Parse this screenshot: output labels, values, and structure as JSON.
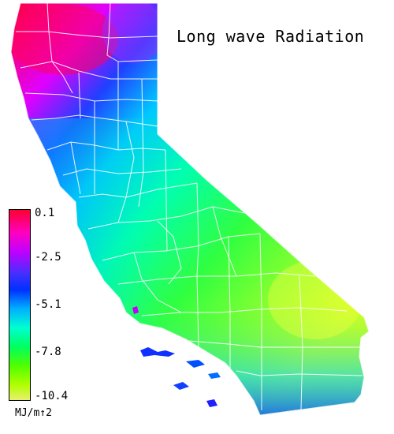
{
  "title": "Long wave Radiation",
  "legend": {
    "ticks": [
      "0.1",
      "-2.5",
      "-5.1",
      "-7.8",
      "-10.4"
    ],
    "unit": "MJ/m↑2",
    "colors": [
      "#ff0030",
      "#ff00ff",
      "#6000ff",
      "#0030ff",
      "#00c8ff",
      "#00ffb0",
      "#10ff20",
      "#70ff00",
      "#c8ff20",
      "#e6f060"
    ]
  },
  "map": {
    "subject": "California",
    "gradient_north": "#ff0050",
    "gradient_coast": "#00a0ff",
    "gradient_east": "#c0ff20"
  }
}
